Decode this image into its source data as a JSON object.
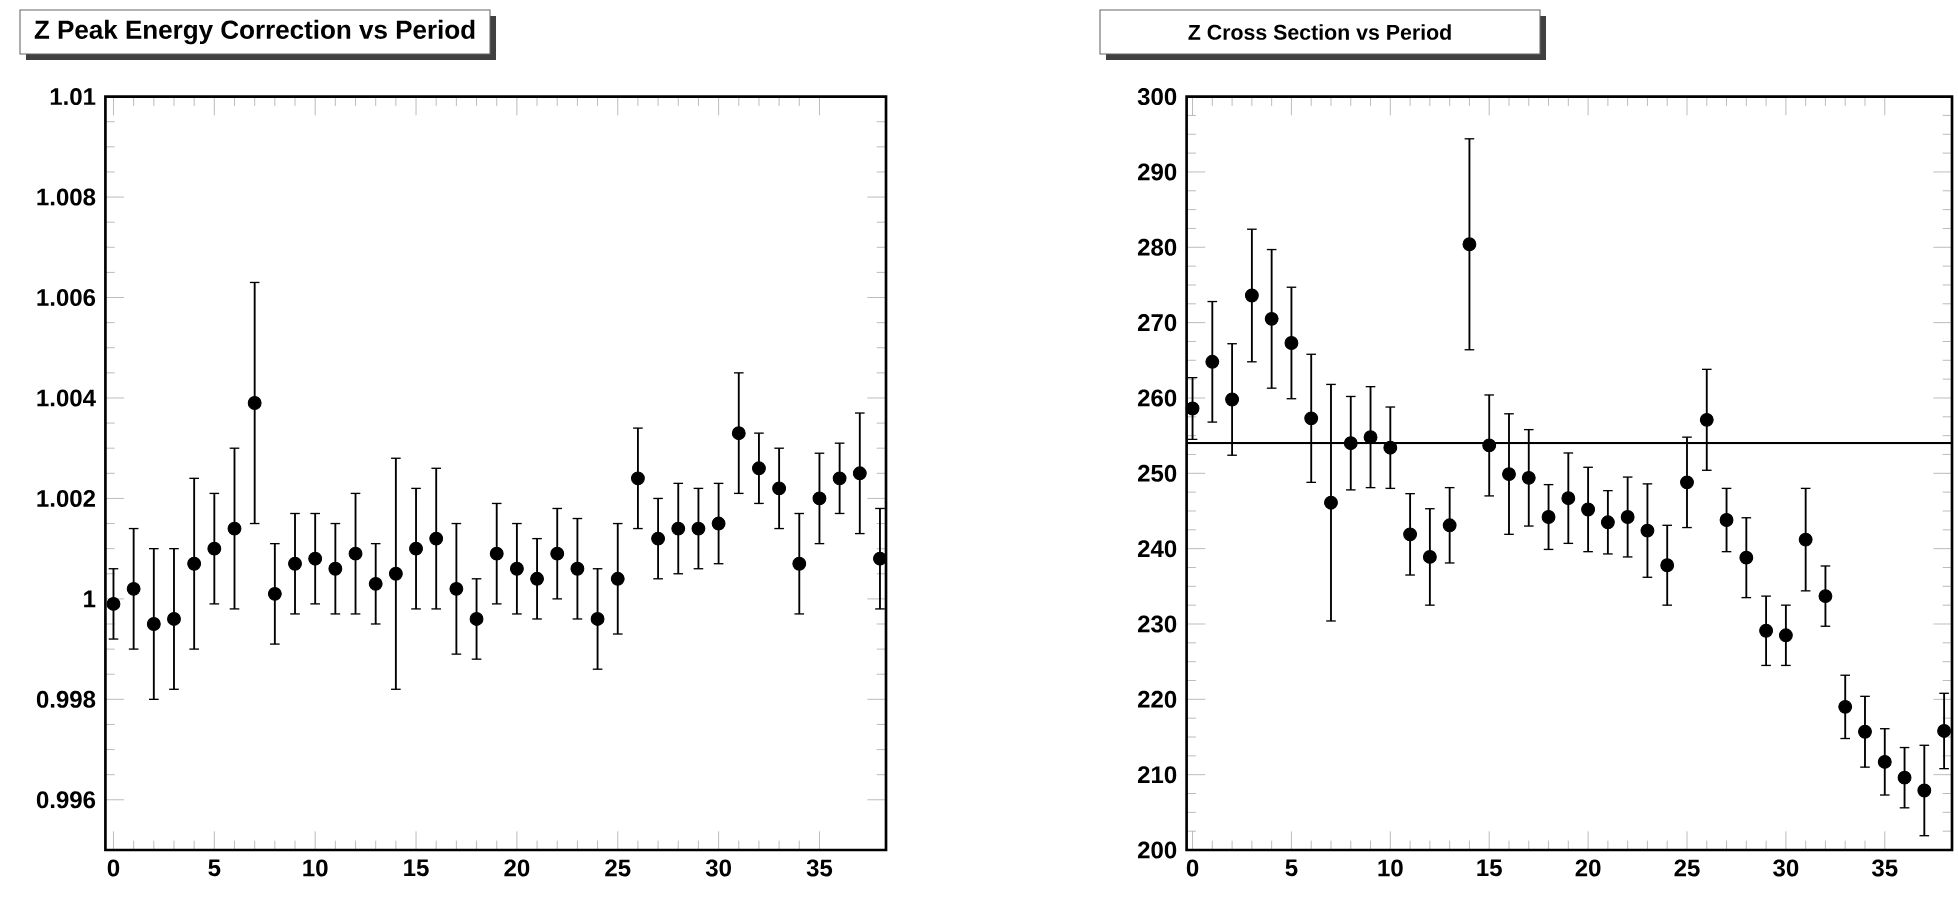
{
  "chart_data": [
    {
      "type": "scatter",
      "title": "Z Peak Energy Correction vs Period",
      "x": [
        0,
        1,
        2,
        3,
        4,
        5,
        6,
        7,
        8,
        9,
        10,
        11,
        12,
        13,
        14,
        15,
        16,
        17,
        18,
        19,
        20,
        21,
        22,
        23,
        24,
        25,
        26,
        27,
        28,
        29,
        30,
        31,
        32,
        33,
        34,
        35,
        36,
        37,
        38
      ],
      "values": [
        0.9999,
        1.0002,
        0.9995,
        0.9996,
        1.0007,
        1.001,
        1.0014,
        1.0039,
        1.0001,
        1.0007,
        1.0008,
        1.0006,
        1.0009,
        1.0003,
        1.0005,
        1.001,
        1.0012,
        1.0002,
        0.9996,
        1.0009,
        1.0006,
        1.0004,
        1.0009,
        1.0006,
        0.9996,
        1.0004,
        1.0024,
        1.0012,
        1.0014,
        1.0014,
        1.0015,
        1.0033,
        1.0026,
        1.0022,
        1.0007,
        1.002,
        1.0024,
        1.0025,
        1.0008
      ],
      "errors": [
        0.0007,
        0.0012,
        0.0015,
        0.0014,
        0.0017,
        0.0011,
        0.0016,
        0.0024,
        0.001,
        0.001,
        0.0009,
        0.0009,
        0.0012,
        0.0008,
        0.0023,
        0.0012,
        0.0014,
        0.0013,
        0.0008,
        0.001,
        0.0009,
        0.0008,
        0.0009,
        0.001,
        0.001,
        0.0011,
        0.001,
        0.0008,
        0.0009,
        0.0008,
        0.0008,
        0.0012,
        0.0007,
        0.0008,
        0.001,
        0.0009,
        0.0007,
        0.0012,
        0.001
      ],
      "color": "#000000",
      "grid": false,
      "xlim": [
        -0.4,
        38.3
      ],
      "ylim": [
        0.995,
        1.01
      ],
      "xticks": [
        0,
        5,
        10,
        15,
        20,
        25,
        30,
        35
      ],
      "yticks": [
        0.996,
        0.998,
        1,
        1.002,
        1.004,
        1.006,
        1.008,
        1.01
      ]
    },
    {
      "type": "scatter",
      "title": "Z Cross Section vs Period",
      "x": [
        0,
        1,
        2,
        3,
        4,
        5,
        6,
        7,
        8,
        9,
        10,
        11,
        12,
        13,
        14,
        15,
        16,
        17,
        18,
        19,
        20,
        21,
        22,
        23,
        24,
        25,
        26,
        27,
        28,
        29,
        30,
        31,
        32,
        33,
        34,
        35,
        36,
        37,
        38
      ],
      "values": [
        258.6,
        264.8,
        259.8,
        273.6,
        270.5,
        267.3,
        257.3,
        246.1,
        254.0,
        254.8,
        253.4,
        241.9,
        238.9,
        243.1,
        280.4,
        253.7,
        249.9,
        249.4,
        244.2,
        246.7,
        245.2,
        243.5,
        244.2,
        242.4,
        237.8,
        248.8,
        257.1,
        243.8,
        238.8,
        229.1,
        228.5,
        241.2,
        233.7,
        219.0,
        215.7,
        211.7,
        209.6,
        207.9,
        215.8
      ],
      "errors": [
        4.1,
        8.0,
        7.4,
        8.8,
        9.2,
        7.4,
        8.5,
        15.7,
        6.2,
        6.7,
        5.4,
        5.4,
        6.4,
        5.0,
        14.0,
        6.7,
        8.0,
        6.4,
        4.3,
        6.0,
        5.6,
        4.2,
        5.3,
        6.2,
        5.3,
        6.0,
        6.7,
        4.2,
        5.3,
        4.6,
        4.0,
        6.8,
        4.0,
        4.2,
        4.7,
        4.4,
        4.0,
        6.0,
        5.0
      ],
      "color": "#000000",
      "grid": false,
      "xlim": [
        -0.3,
        38.4
      ],
      "ylim": [
        200,
        300
      ],
      "xticks": [
        0,
        5,
        10,
        15,
        20,
        25,
        30,
        35
      ],
      "yticks": [
        200,
        210,
        220,
        230,
        240,
        250,
        260,
        270,
        280,
        290,
        300
      ],
      "ref_lines": [
        {
          "axis": "y",
          "value": 254,
          "color": "#000000",
          "line_style": "solid"
        }
      ]
    }
  ]
}
